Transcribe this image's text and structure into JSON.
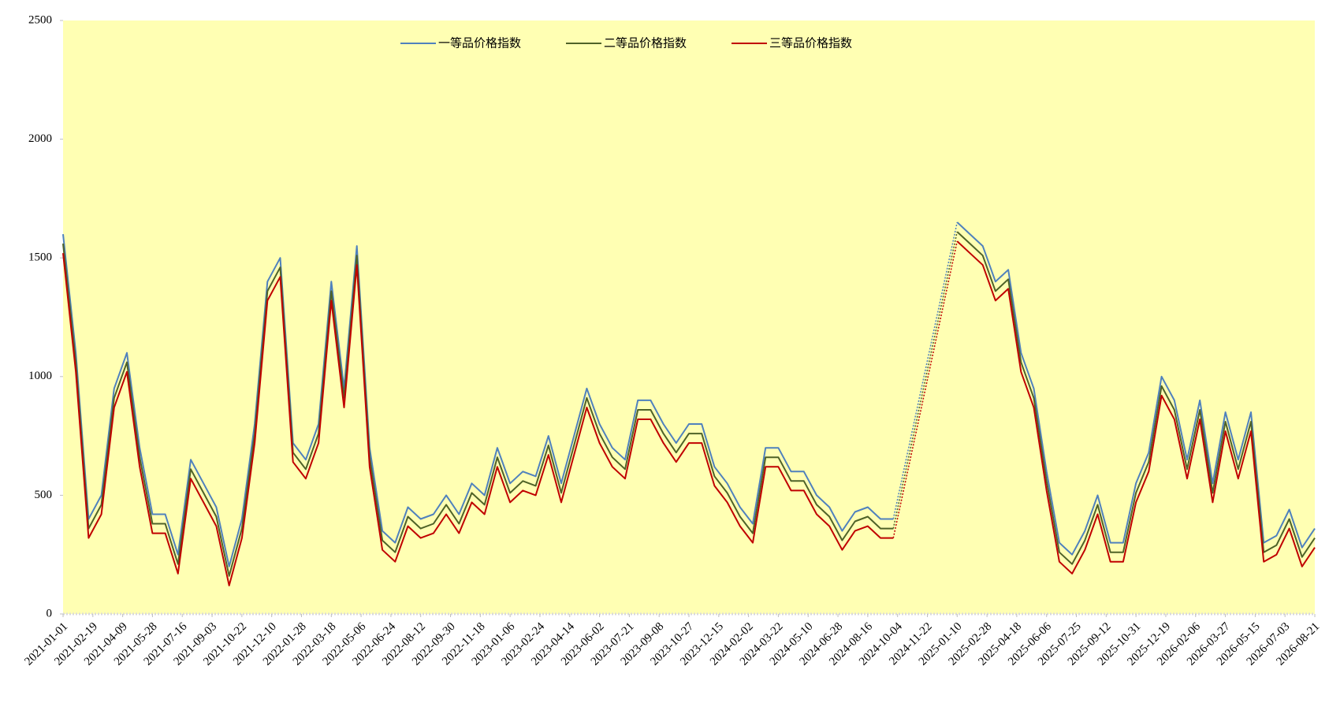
{
  "chart_data": {
    "type": "line",
    "x": [
      "2021-01-01",
      "2021-01-22",
      "2021-02-12",
      "2021-03-05",
      "2021-03-26",
      "2021-04-16",
      "2021-05-07",
      "2021-05-28",
      "2021-06-18",
      "2021-07-09",
      "2021-07-30",
      "2021-08-20",
      "2021-09-10",
      "2021-10-01",
      "2021-10-22",
      "2021-11-12",
      "2021-12-03",
      "2021-12-24",
      "2022-01-14",
      "2022-02-04",
      "2022-02-25",
      "2022-03-18",
      "2022-04-08",
      "2022-04-29",
      "2022-05-20",
      "2022-06-10",
      "2022-07-01",
      "2022-07-22",
      "2022-08-12",
      "2022-09-02",
      "2022-09-23",
      "2022-10-14",
      "2022-11-04",
      "2022-11-25",
      "2022-12-16",
      "2023-01-06",
      "2023-01-27",
      "2023-02-17",
      "2023-03-10",
      "2023-03-31",
      "2023-04-21",
      "2023-05-12",
      "2023-06-02",
      "2023-06-23",
      "2023-07-14",
      "2023-08-04",
      "2023-08-25",
      "2023-09-15",
      "2023-10-06",
      "2023-10-27",
      "2023-11-17",
      "2023-12-08",
      "2023-12-29",
      "2024-01-19",
      "2024-02-09",
      "2024-03-01",
      "2024-03-22",
      "2024-04-12",
      "2024-05-03",
      "2024-05-24",
      "2024-06-14",
      "2024-07-05",
      "2024-07-26",
      "2024-08-16",
      "2024-09-06",
      "2024-09-27",
      "2024-10-18",
      "2024-11-08",
      "2024-11-29",
      "2024-12-20",
      "2025-01-10",
      "2025-01-31",
      "2025-02-21",
      "2025-03-14",
      "2025-04-04",
      "2025-04-25",
      "2025-05-16",
      "2025-06-06",
      "2025-06-27",
      "2025-07-18",
      "2025-08-08",
      "2025-08-29",
      "2025-09-19",
      "2025-10-10",
      "2025-10-31",
      "2025-11-21",
      "2025-12-12",
      "2026-01-02",
      "2026-01-23",
      "2026-02-13",
      "2026-03-06",
      "2026-03-27",
      "2026-04-17",
      "2026-05-08",
      "2026-05-29",
      "2026-06-19",
      "2026-07-10",
      "2026-07-31",
      "2026-08-21"
    ],
    "series": [
      {
        "name": "一等品价格指数",
        "color": "#4f81bd",
        "values": [
          1600,
          1100,
          400,
          500,
          950,
          1100,
          700,
          420,
          420,
          250,
          650,
          550,
          450,
          200,
          400,
          800,
          1400,
          1500,
          720,
          650,
          800,
          1400,
          950,
          1550,
          700,
          350,
          300,
          450,
          400,
          420,
          500,
          420,
          550,
          500,
          700,
          550,
          600,
          580,
          750,
          550,
          750,
          950,
          800,
          700,
          650,
          900,
          900,
          800,
          720,
          800,
          800,
          620,
          550,
          450,
          380,
          700,
          700,
          600,
          600,
          500,
          450,
          350,
          430,
          450,
          400,
          400,
          null,
          null,
          null,
          null,
          1650,
          1600,
          1550,
          1400,
          1450,
          1100,
          950,
          600,
          300,
          250,
          350,
          500,
          300,
          300,
          550,
          680,
          1000,
          900,
          650,
          900,
          550,
          850,
          650,
          850,
          300,
          330,
          440,
          280,
          360
        ]
      },
      {
        "name": "二等品价格指数",
        "color": "#4f6228",
        "values": [
          1560,
          1060,
          360,
          460,
          910,
          1060,
          660,
          380,
          380,
          210,
          610,
          510,
          410,
          160,
          360,
          760,
          1360,
          1460,
          680,
          610,
          760,
          1360,
          910,
          1510,
          660,
          310,
          260,
          410,
          360,
          380,
          460,
          380,
          510,
          460,
          660,
          510,
          560,
          540,
          710,
          510,
          710,
          910,
          760,
          660,
          610,
          860,
          860,
          760,
          680,
          760,
          760,
          580,
          510,
          410,
          340,
          660,
          660,
          560,
          560,
          460,
          410,
          310,
          390,
          410,
          360,
          360,
          null,
          null,
          null,
          null,
          1610,
          1560,
          1510,
          1360,
          1410,
          1060,
          910,
          560,
          260,
          210,
          310,
          460,
          260,
          260,
          510,
          640,
          960,
          860,
          610,
          860,
          510,
          810,
          610,
          810,
          260,
          290,
          400,
          240,
          320
        ]
      },
      {
        "name": "三等品价格指数",
        "color": "#c00000",
        "values": [
          1520,
          1020,
          320,
          420,
          870,
          1020,
          620,
          340,
          340,
          170,
          570,
          470,
          370,
          120,
          320,
          720,
          1320,
          1420,
          640,
          570,
          720,
          1320,
          870,
          1470,
          620,
          270,
          220,
          370,
          320,
          340,
          420,
          340,
          470,
          420,
          620,
          470,
          520,
          500,
          670,
          470,
          670,
          870,
          720,
          620,
          570,
          820,
          820,
          720,
          640,
          720,
          720,
          540,
          470,
          370,
          300,
          620,
          620,
          520,
          520,
          420,
          370,
          270,
          350,
          370,
          320,
          320,
          null,
          null,
          null,
          null,
          1570,
          1520,
          1470,
          1320,
          1370,
          1020,
          870,
          520,
          220,
          170,
          270,
          420,
          220,
          220,
          470,
          600,
          920,
          820,
          570,
          820,
          470,
          770,
          570,
          770,
          220,
          250,
          360,
          200,
          280
        ]
      }
    ],
    "xlim": [
      "2021-01-01",
      "2026-08-21"
    ],
    "xticks": [
      "2021-01-01",
      "2021-02-19",
      "2021-04-09",
      "2021-05-28",
      "2021-07-16",
      "2021-09-03",
      "2021-10-22",
      "2021-12-10",
      "2022-01-28",
      "2022-03-18",
      "2022-05-06",
      "2022-06-24",
      "2022-08-12",
      "2022-09-30",
      "2022-11-18",
      "2023-01-06",
      "2023-02-24",
      "2023-04-14",
      "2023-06-02",
      "2023-07-21",
      "2023-09-08",
      "2023-10-27",
      "2023-12-15",
      "2024-02-02",
      "2024-03-22",
      "2024-05-10",
      "2024-06-28",
      "2024-08-16",
      "2024-10-04",
      "2024-11-22",
      "2025-01-10",
      "2025-02-28",
      "2025-04-18",
      "2025-06-06",
      "2025-07-25",
      "2025-09-12",
      "2025-10-31",
      "2025-12-19",
      "2026-02-06",
      "2026-03-27",
      "2026-05-15",
      "2026-07-03",
      "2026-08-21"
    ],
    "ylim": [
      0,
      2500
    ],
    "yticks": [
      0,
      500,
      1000,
      1500,
      2000,
      2500
    ],
    "legend": "top",
    "background": "#ffffb3"
  }
}
